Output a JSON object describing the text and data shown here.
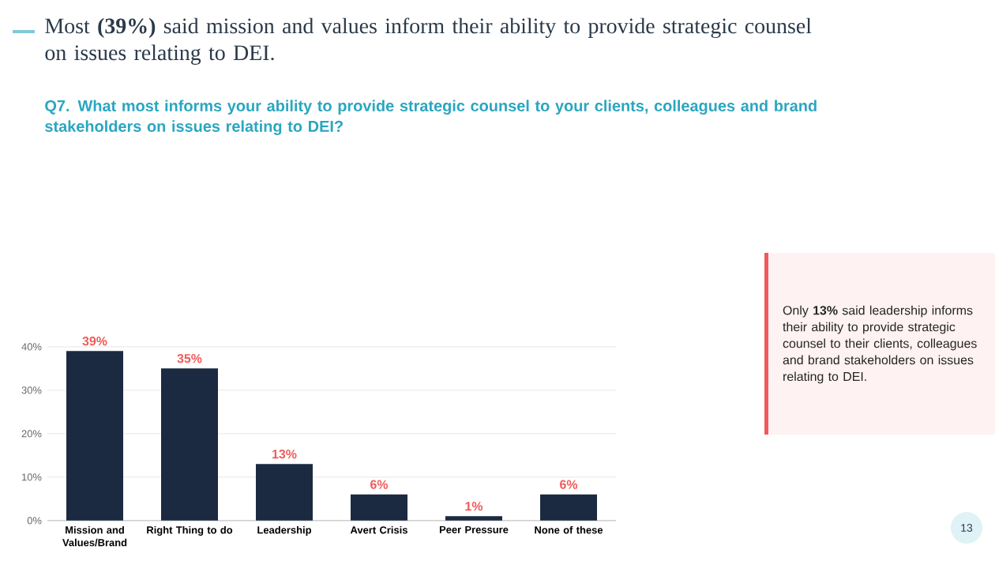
{
  "chart_data": {
    "type": "bar",
    "title": "Most **(39%)** said mission and values inform their ability to provide strategic counsel on issues relating to DEI.",
    "subtitle": "Q7. What most informs your ability to provide strategic counsel to your clients, colleagues and brand stakeholders on issues relating to DEI?",
    "categories": [
      "Mission and Values/Brand",
      "Right Thing to do",
      "Leadership",
      "Avert Crisis",
      "Peer Pressure",
      "None of these"
    ],
    "values": [
      39,
      35,
      13,
      6,
      1,
      6
    ],
    "value_labels": [
      "39%",
      "35%",
      "13%",
      "6%",
      "1%",
      "6%"
    ],
    "color": "#1b2a41",
    "ylim": [
      0,
      40
    ],
    "yticks": [
      {
        "value": 0,
        "label": "0%"
      },
      {
        "value": 10,
        "label": "10%"
      },
      {
        "value": 20,
        "label": "20%"
      },
      {
        "value": 30,
        "label": "30%"
      },
      {
        "value": 40,
        "label": "40%"
      }
    ],
    "grid": "y",
    "annotations": [
      "Only **13%** said leadership informs their ability to provide strategic counsel to their clients, colleagues and brand stakeholders on issues relating to DEI.",
      "13"
    ]
  }
}
